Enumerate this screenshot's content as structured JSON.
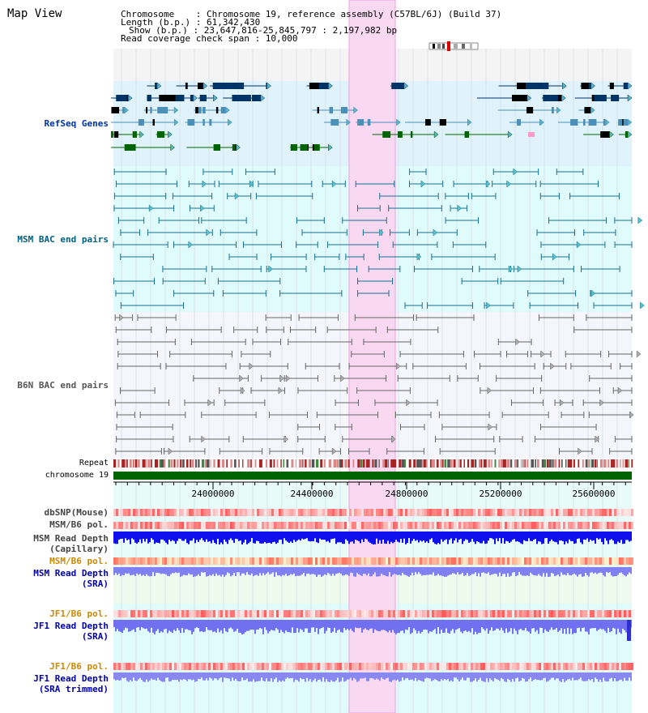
{
  "title": "Map View",
  "info": {
    "chromosome": "Chromosome    : Chromosome 19, reference assembly (C57BL/6J) (Build 37)",
    "length": "Length (b.p.) : 61,342,430",
    "show": "Show (b.p.) : 23,647,816-25,845,797 : 2,197,982 bp",
    "span": "Read coverage check span : 10,000"
  },
  "tracks": {
    "refseq": "RefSeq Genes",
    "msm_bac": "MSM BAC end pairs",
    "b6n_bac": "B6N BAC end pairs",
    "repeat": "Repeat",
    "chrom": "chromosome 19",
    "dbsnp": "dbSNP(Mouse)",
    "msm_pol1": "MSM/B6 pol.",
    "msm_rd1a": "MSM Read Depth",
    "msm_rd1b": "(Capillary)",
    "msm_pol2": "MSM/B6 pol.",
    "msm_rd2a": "MSM Read Depth",
    "msm_rd2b": "(SRA)",
    "jf1_pol1": "JF1/B6 pol.",
    "jf1_rd1a": "JF1 Read Depth",
    "jf1_rd1b": "(SRA)",
    "jf1_pol2": "JF1/B6 pol.",
    "jf1_rd2a": "JF1 Read Depth",
    "jf1_rd2b": "(SRA trimmed)"
  },
  "axis_ticks": [
    "24000000",
    "24400000",
    "24800000",
    "25200000",
    "25600000"
  ],
  "colors": {
    "refseq_bg": "#e0f2fb",
    "bac_bg": "#e0fbfb",
    "highlight": "#f9d8f2",
    "chrom": "#006400",
    "gene_dark": "#003366",
    "gene_mid": "#4a90b8",
    "gene_green": "#006400",
    "msm_label": "#003399",
    "b6n_label": "#555555",
    "pol_label": "#cc8800",
    "depth_label": "#0000aa"
  }
}
